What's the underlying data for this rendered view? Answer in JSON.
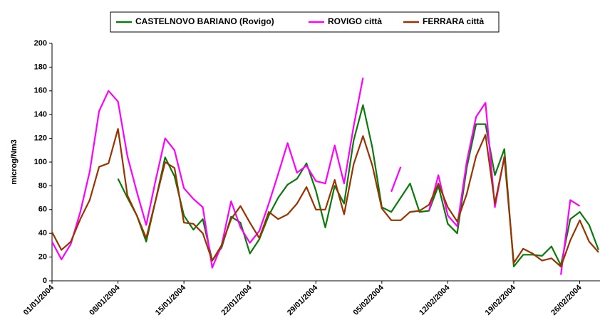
{
  "chart_data": {
    "type": "line",
    "categories": [
      "01/01/2004",
      null,
      null,
      null,
      null,
      null,
      null,
      "08/01/2004",
      null,
      null,
      null,
      null,
      null,
      null,
      "15/01/2004",
      null,
      null,
      null,
      null,
      null,
      null,
      "22/01/2004",
      null,
      null,
      null,
      null,
      null,
      null,
      "29/01/2004",
      null,
      null,
      null,
      null,
      null,
      null,
      "05/02/2004",
      null,
      null,
      null,
      null,
      null,
      null,
      "12/02/2004",
      null,
      null,
      null,
      null,
      null,
      null,
      "19/02/2004",
      null,
      null,
      null,
      null,
      null,
      null,
      "26/02/2004",
      null,
      null
    ],
    "series": [
      {
        "name": "CASTELNOVO BARIANO (Rovigo)",
        "color": "#0a7a0a",
        "values": [
          null,
          null,
          null,
          null,
          null,
          null,
          null,
          86,
          70,
          55,
          33,
          68,
          104,
          88,
          55,
          43,
          52,
          17,
          28,
          54,
          49,
          23,
          35,
          55,
          70,
          81,
          86,
          99,
          76,
          45,
          80,
          65,
          118,
          148,
          112,
          62,
          58,
          70,
          82,
          58,
          59,
          80,
          48,
          40,
          95,
          132,
          132,
          89,
          111,
          12,
          22,
          22,
          21,
          29,
          13,
          52,
          58,
          47,
          26
        ]
      },
      {
        "name": "ROVIGO città",
        "color": "#ff00ff",
        "values": [
          33,
          18,
          31,
          58,
          92,
          143,
          160,
          151,
          105,
          75,
          47,
          85,
          120,
          110,
          78,
          69,
          62,
          11,
          30,
          67,
          45,
          32,
          42,
          65,
          90,
          116,
          91,
          97,
          84,
          82,
          114,
          82,
          130,
          171,
          null,
          null,
          75,
          96,
          null,
          null,
          59,
          89,
          55,
          46,
          100,
          138,
          150,
          62,
          105,
          null,
          null,
          null,
          null,
          null,
          5,
          68,
          63,
          null,
          null
        ]
      },
      {
        "name": "FERRARA città",
        "color": "#993300",
        "values": [
          41,
          26,
          33,
          52,
          68,
          96,
          99,
          128,
          72,
          55,
          36,
          68,
          100,
          95,
          49,
          48,
          40,
          17,
          30,
          52,
          63,
          49,
          36,
          58,
          52,
          56,
          65,
          79,
          60,
          60,
          85,
          56,
          98,
          122,
          97,
          61,
          51,
          51,
          58,
          59,
          64,
          82,
          62,
          50,
          73,
          105,
          123,
          65,
          104,
          15,
          27,
          23,
          17,
          19,
          12,
          34,
          51,
          33,
          24
        ]
      }
    ],
    "y_label": "microg/Nm3",
    "ylim": [
      0,
      200
    ],
    "yticks": [
      0,
      20,
      40,
      60,
      80,
      100,
      120,
      140,
      160,
      180,
      200
    ]
  }
}
